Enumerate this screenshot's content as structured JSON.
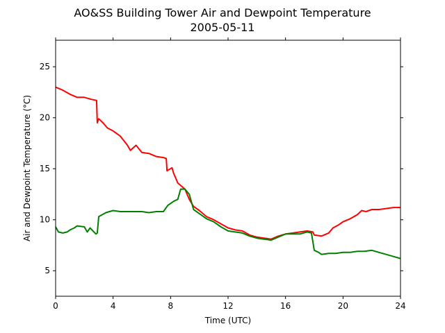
{
  "chart_data": {
    "type": "line",
    "title": "AO&SS Building Tower Air and Dewpoint Temperature",
    "subtitle": "2005-05-11",
    "xlabel": "Time (UTC)",
    "ylabel": "Air and Dewpoint Temperature (°C)",
    "xlim": [
      0,
      24
    ],
    "ylim": [
      2.5,
      27.6
    ],
    "xticks": [
      0,
      4,
      8,
      12,
      16,
      20,
      24
    ],
    "yticks": [
      5,
      10,
      15,
      20,
      25
    ],
    "grid": false,
    "legend": "none",
    "series": [
      {
        "color": "#ff0000",
        "x": [
          0,
          0.5,
          1.0,
          1.5,
          2.0,
          2.5,
          2.85,
          2.9,
          3.0,
          3.3,
          3.6,
          4.0,
          4.5,
          5.0,
          5.2,
          5.6,
          6.0,
          6.5,
          7.0,
          7.5,
          7.7,
          7.75,
          8.1,
          8.2,
          8.5,
          9.0,
          9.3,
          9.6,
          10.0,
          10.5,
          11.0,
          11.5,
          12.0,
          12.5,
          13.0,
          13.5,
          14.0,
          14.5,
          15.0,
          15.5,
          16.0,
          16.5,
          17.0,
          17.5,
          17.9,
          18.0,
          18.5,
          19.0,
          19.3,
          19.7,
          20.0,
          20.5,
          21.0,
          21.3,
          21.6,
          22.0,
          22.5,
          23.0,
          23.5,
          24.0
        ],
        "y": [
          23.0,
          22.7,
          22.3,
          22.0,
          22.0,
          21.8,
          21.7,
          19.5,
          19.9,
          19.5,
          19.0,
          18.7,
          18.2,
          17.3,
          16.8,
          17.3,
          16.6,
          16.5,
          16.2,
          16.1,
          16.0,
          14.8,
          15.1,
          14.6,
          13.6,
          13.0,
          12.0,
          11.3,
          10.9,
          10.3,
          10.0,
          9.6,
          9.2,
          9.0,
          8.9,
          8.5,
          8.3,
          8.2,
          8.1,
          8.4,
          8.6,
          8.7,
          8.8,
          8.9,
          8.8,
          8.5,
          8.4,
          8.7,
          9.2,
          9.5,
          9.8,
          10.1,
          10.5,
          10.9,
          10.8,
          11.0,
          11.0,
          11.1,
          11.2,
          11.2
        ]
      },
      {
        "color": "#008000",
        "x": [
          0,
          0.2,
          0.5,
          0.8,
          1.0,
          1.3,
          1.5,
          2.0,
          2.2,
          2.4,
          2.6,
          2.8,
          2.9,
          3.0,
          3.5,
          4.0,
          4.5,
          5.0,
          5.5,
          6.0,
          6.5,
          7.0,
          7.5,
          7.8,
          8.2,
          8.5,
          8.7,
          9.0,
          9.3,
          9.6,
          10.0,
          10.5,
          11.0,
          11.5,
          12.0,
          12.5,
          13.0,
          13.5,
          14.0,
          14.5,
          15.0,
          15.5,
          16.0,
          16.5,
          17.0,
          17.5,
          17.8,
          18.0,
          18.3,
          18.5,
          19.0,
          19.5,
          20.0,
          20.5,
          21.0,
          21.5,
          22.0,
          22.5,
          23.0,
          23.5,
          24.0
        ],
        "y": [
          9.3,
          8.8,
          8.7,
          8.8,
          9.0,
          9.2,
          9.4,
          9.3,
          8.8,
          9.2,
          8.9,
          8.6,
          8.7,
          10.3,
          10.7,
          10.9,
          10.8,
          10.8,
          10.8,
          10.8,
          10.7,
          10.8,
          10.8,
          11.4,
          11.8,
          12.0,
          13.0,
          13.0,
          12.5,
          11.0,
          10.6,
          10.1,
          9.8,
          9.3,
          8.9,
          8.8,
          8.7,
          8.4,
          8.2,
          8.1,
          8.0,
          8.3,
          8.6,
          8.6,
          8.6,
          8.8,
          8.7,
          7.0,
          6.8,
          6.6,
          6.7,
          6.7,
          6.8,
          6.8,
          6.9,
          6.9,
          7.0,
          6.8,
          6.6,
          6.4,
          6.2
        ]
      }
    ]
  }
}
